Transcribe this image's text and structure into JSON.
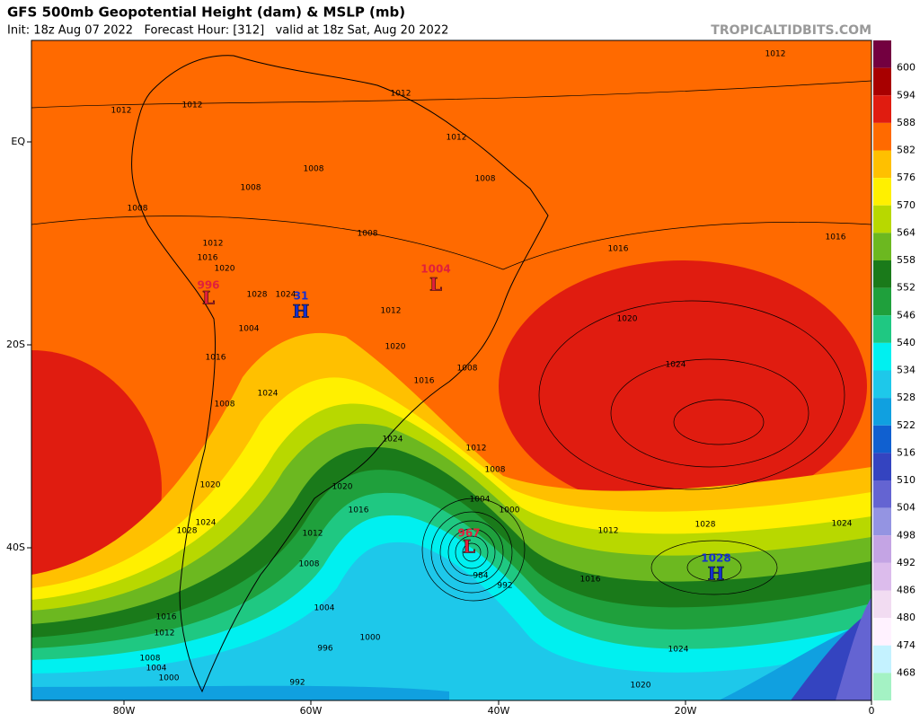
{
  "header": {
    "title": "GFS 500mb Geopotential Height (dam) & MSLP (mb)",
    "subtitle": "Init: 18z Aug 07 2022   Forecast Hour: [312]   valid at 18z Sat, Aug 20 2022",
    "site": "TROPICALTIDBITS.COM"
  },
  "colorbar": {
    "levels": [
      600,
      594,
      588,
      582,
      576,
      570,
      564,
      558,
      552,
      546,
      540,
      534,
      528,
      522,
      516,
      510,
      504,
      498,
      492,
      486,
      480,
      474,
      468
    ],
    "colors": [
      "#730040",
      "#a80000",
      "#e01c10",
      "#ff6a00",
      "#ffc000",
      "#fff000",
      "#b8d800",
      "#6cb820",
      "#1a7a1a",
      "#1fa03c",
      "#1fc882",
      "#00f0f0",
      "#1ec8ea",
      "#10a0e0",
      "#1060d0",
      "#3444c0",
      "#6464d2",
      "#9494e2",
      "#c4a4e4",
      "#dcbcec",
      "#f2dcf2",
      "#fff2ff",
      "#c4f2ff",
      "#a4f2c4"
    ]
  },
  "axes": {
    "lat_labels": [
      "EQ",
      "20S",
      "40S"
    ],
    "lon_labels": [
      "80W",
      "60W",
      "40W",
      "20W",
      "0"
    ]
  },
  "features": [
    {
      "letter": "L",
      "value": 996
    },
    {
      "letter": "H",
      "value": 31
    },
    {
      "letter": "L",
      "value": 1004
    },
    {
      "letter": "L",
      "value": 967
    },
    {
      "letter": "H",
      "value": 1028
    }
  ],
  "isobar_labels": [
    1012,
    1012,
    1012,
    1012,
    1012,
    1008,
    1008,
    1008,
    1008,
    1008,
    1016,
    1016,
    1012,
    1016,
    1020,
    1028,
    1024,
    1012,
    1004,
    1020,
    1016,
    1008,
    1016,
    1024,
    1008,
    1020,
    1024,
    1024,
    1012,
    1008,
    1020,
    1016,
    1004,
    1000,
    1020,
    1024,
    1028,
    1012,
    1008,
    1028,
    1024,
    1012,
    1016,
    984,
    992,
    1004,
    1000,
    996,
    992,
    1016,
    1012,
    1008,
    1004,
    1000,
    1024,
    1020
  ]
}
